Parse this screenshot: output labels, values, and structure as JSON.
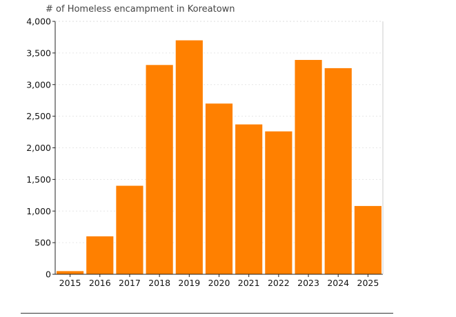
{
  "chart_data": {
    "type": "bar",
    "title": "# of Homeless encampment in Koreatown",
    "xlabel": "",
    "ylabel": "",
    "categories": [
      "2015",
      "2016",
      "2017",
      "2018",
      "2019",
      "2020",
      "2021",
      "2022",
      "2023",
      "2024",
      "2025"
    ],
    "values": [
      50,
      600,
      1400,
      3310,
      3700,
      2700,
      2370,
      2260,
      3390,
      3260,
      1080
    ],
    "ylim": [
      0,
      4000
    ],
    "yticks": [
      0,
      500,
      1000,
      1500,
      2000,
      2500,
      3000,
      3500,
      4000
    ],
    "ytick_labels": [
      "0",
      "500",
      "1,000",
      "1,500",
      "2,000",
      "2,500",
      "3,000",
      "3,500",
      "4,000"
    ],
    "grid": true,
    "legend": "none",
    "bar_color": "#ff8000",
    "grid_color": "#e6e6e6",
    "axis_color": "#222222"
  }
}
